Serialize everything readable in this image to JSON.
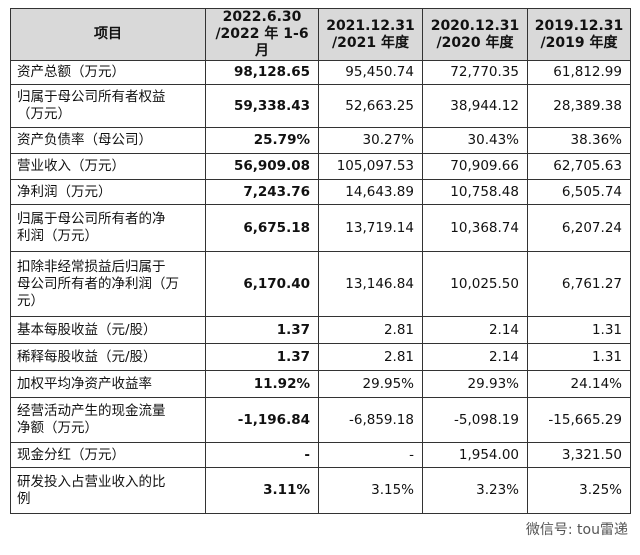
{
  "table": {
    "header": [
      "项目",
      "2022.6.30\n/2022 年 1-6 月",
      "2021.12.31\n/2021 年度",
      "2020.12.31\n/2020 年度",
      "2019.12.31\n/2019 年度"
    ],
    "rows": [
      {
        "label": [
          "资产总额（万元）"
        ],
        "values": [
          "98,128.65",
          "95,450.74",
          "72,770.35",
          "61,812.99"
        ]
      },
      {
        "label": [
          "归属于母公司所有者权益",
          "（万元）"
        ],
        "values": [
          "59,338.43",
          "52,663.25",
          "38,944.12",
          "28,389.38"
        ]
      },
      {
        "label": [
          "资产负债率（母公司）"
        ],
        "values": [
          "25.79%",
          "30.27%",
          "30.43%",
          "38.36%"
        ]
      },
      {
        "label": [
          "营业收入（万元）"
        ],
        "values": [
          "56,909.08",
          "105,097.53",
          "70,909.66",
          "62,705.63"
        ]
      },
      {
        "label": [
          "净利润（万元）"
        ],
        "values": [
          "7,243.76",
          "14,643.89",
          "10,758.48",
          "6,505.74"
        ]
      },
      {
        "label": [
          "归属于母公司所有者的净",
          "利润（万元）"
        ],
        "values": [
          "6,675.18",
          "13,719.14",
          "10,368.74",
          "6,207.24"
        ]
      },
      {
        "label": [
          "扣除非经常损益后归属于",
          "母公司所有者的净利润（万",
          "元）"
        ],
        "values": [
          "6,170.40",
          "13,146.84",
          "10,025.50",
          "6,761.27"
        ]
      },
      {
        "label": [
          "基本每股收益（元/股）"
        ],
        "values": [
          "1.37",
          "2.81",
          "2.14",
          "1.31"
        ]
      },
      {
        "label": [
          "稀释每股收益（元/股）"
        ],
        "values": [
          "1.37",
          "2.81",
          "2.14",
          "1.31"
        ]
      },
      {
        "label": [
          "加权平均净资产收益率"
        ],
        "values": [
          "11.92%",
          "29.95%",
          "29.93%",
          "24.14%"
        ]
      },
      {
        "label": [
          "经营活动产生的现金流量",
          "净额（万元）"
        ],
        "values": [
          "-1,196.84",
          "-6,859.18",
          "-5,098.19",
          "-15,665.29"
        ]
      },
      {
        "label": [
          "现金分红（万元）"
        ],
        "values": [
          "-",
          "-",
          "1,954.00",
          "3,321.50"
        ]
      },
      {
        "label": [
          "研发投入占营业收入的比",
          "例"
        ],
        "values": [
          "3.11%",
          "3.15%",
          "3.23%",
          "3.25%"
        ]
      }
    ]
  },
  "watermark": "微信号: tou雷递"
}
